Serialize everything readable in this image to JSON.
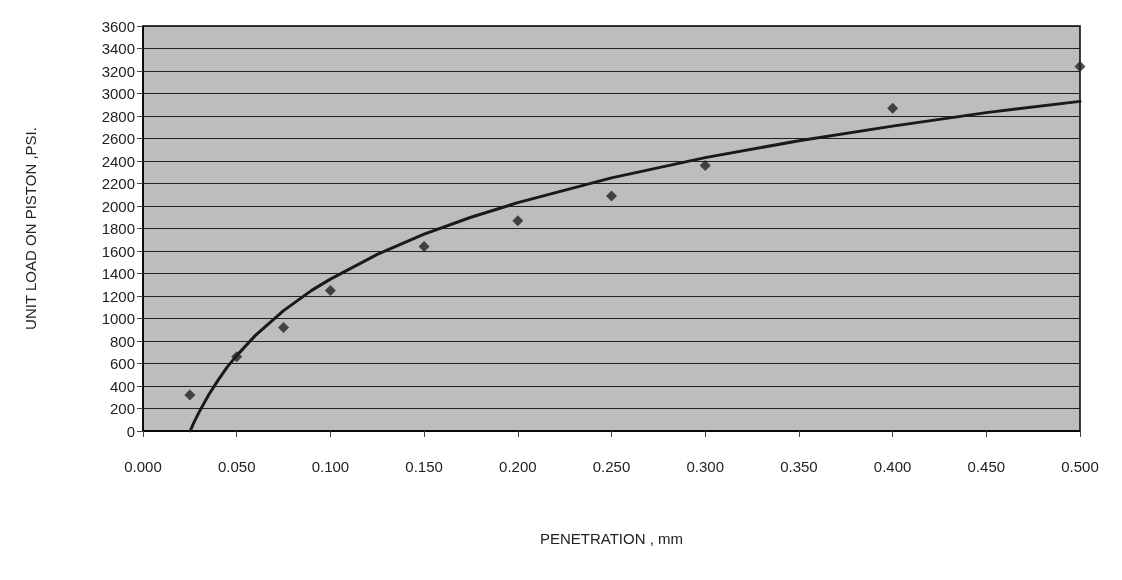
{
  "chart_data": {
    "type": "scatter",
    "xlabel": "PENETRATION , mm",
    "ylabel": "UNIT LOAD ON PISTON ,PSI.",
    "xlim": [
      0,
      0.5
    ],
    "ylim": [
      0,
      3600
    ],
    "xticks": [
      {
        "value": 0,
        "label": "0.000"
      },
      {
        "value": 0.05,
        "label": "0.050"
      },
      {
        "value": 0.1,
        "label": "0.100"
      },
      {
        "value": 0.15,
        "label": "0.150"
      },
      {
        "value": 0.2,
        "label": "0.200"
      },
      {
        "value": 0.25,
        "label": "0.250"
      },
      {
        "value": 0.3,
        "label": "0.300"
      },
      {
        "value": 0.35,
        "label": "0.350"
      },
      {
        "value": 0.4,
        "label": "0.400"
      },
      {
        "value": 0.45,
        "label": "0.450"
      },
      {
        "value": 0.5,
        "label": "0.500"
      }
    ],
    "yticks": [
      0,
      200,
      400,
      600,
      800,
      1000,
      1200,
      1400,
      1600,
      1800,
      2000,
      2200,
      2400,
      2600,
      2800,
      3000,
      3200,
      3400,
      3600
    ],
    "grid": "y",
    "series": [
      {
        "type": "scatter",
        "marker": "diamond",
        "color": "#222222",
        "x": [
          0.025,
          0.05,
          0.075,
          0.1,
          0.15,
          0.2,
          0.25,
          0.3,
          0.4,
          0.5
        ],
        "values": [
          320,
          660,
          920,
          1250,
          1640,
          1870,
          2090,
          2360,
          2870,
          3240
        ]
      },
      {
        "type": "line",
        "marker": "none",
        "line_style": "solid",
        "color": "#1a1a1a",
        "x": [
          0.0252,
          0.027,
          0.03,
          0.035,
          0.04,
          0.045,
          0.05,
          0.06,
          0.075,
          0.09,
          0.1,
          0.125,
          0.15,
          0.175,
          0.2,
          0.25,
          0.3,
          0.35,
          0.4,
          0.45,
          0.5
        ],
        "values": [
          0,
          70,
          170,
          320,
          450,
          570,
          670,
          850,
          1070,
          1250,
          1350,
          1570,
          1750,
          1900,
          2030,
          2250,
          2430,
          2580,
          2710,
          2830,
          2930
        ]
      }
    ]
  }
}
